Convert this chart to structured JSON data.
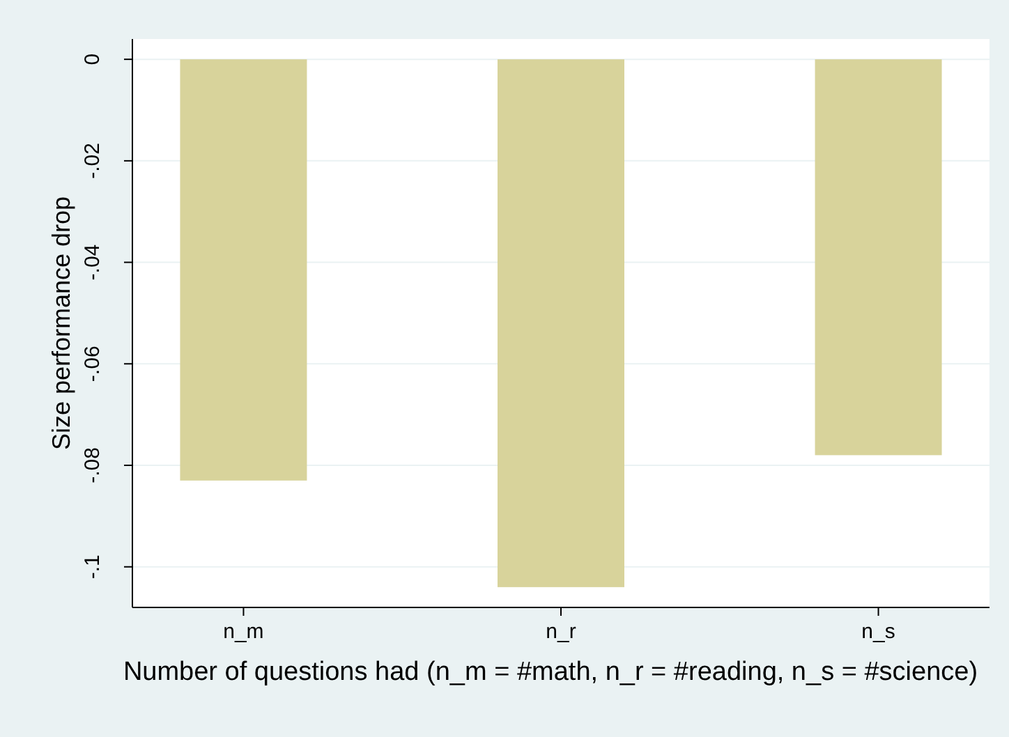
{
  "chart_data": {
    "type": "bar",
    "xlabel": "Number of questions had (n_m = #math, n_r = #reading, n_s = #science)",
    "ylabel": "Size performance drop",
    "categories": [
      "n_m",
      "n_r",
      "n_s"
    ],
    "values": [
      -0.083,
      -0.104,
      -0.078
    ],
    "color": "#d8d39b",
    "ylim": [
      -0.108,
      0.004
    ],
    "yticks": [
      {
        "value": 0,
        "label": "0"
      },
      {
        "value": -0.02,
        "label": "-.02"
      },
      {
        "value": -0.04,
        "label": "-.04"
      },
      {
        "value": -0.06,
        "label": "-.06"
      },
      {
        "value": -0.08,
        "label": "-.08"
      },
      {
        "value": -0.1,
        "label": "-.1"
      }
    ],
    "grid": "y"
  }
}
